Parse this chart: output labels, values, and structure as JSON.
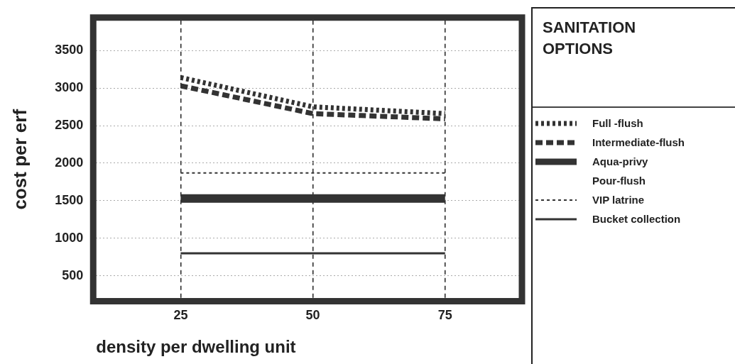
{
  "chart_data": {
    "type": "line",
    "xlabel": "density per dwelling unit",
    "ylabel": "cost per erf",
    "legend_title": "SANITATION OPTIONS",
    "legend": "right",
    "grid": true,
    "marker": "none",
    "x": [
      25,
      50,
      75
    ],
    "xlim": [
      9,
      89
    ],
    "xticks": [
      25,
      50,
      75
    ],
    "ylim": [
      200,
      3900
    ],
    "yticks": [
      500,
      1000,
      1500,
      2000,
      2500,
      3000,
      3500
    ],
    "series": [
      {
        "name": "Full -flush",
        "color": "#333333",
        "line_style": "dotted",
        "values": [
          3140,
          2750,
          2660
        ]
      },
      {
        "name": "Intermediate-flush",
        "color": "#333333",
        "line_style": "dashed",
        "values": [
          3030,
          2660,
          2590
        ]
      },
      {
        "name": "Aqua-privy",
        "color": "#333333",
        "line_style": "solid",
        "values": [
          1530,
          1530,
          1530
        ]
      },
      {
        "name": "Pour-flush",
        "values": [
          null,
          null,
          null
        ]
      },
      {
        "name": "VIP latrine",
        "color": "#333333",
        "line_style": "dotted",
        "values": [
          1870,
          1870,
          1870
        ]
      },
      {
        "name": "Bucket collection",
        "color": "#333333",
        "line_style": "solid",
        "values": [
          800,
          800,
          800
        ]
      }
    ]
  }
}
